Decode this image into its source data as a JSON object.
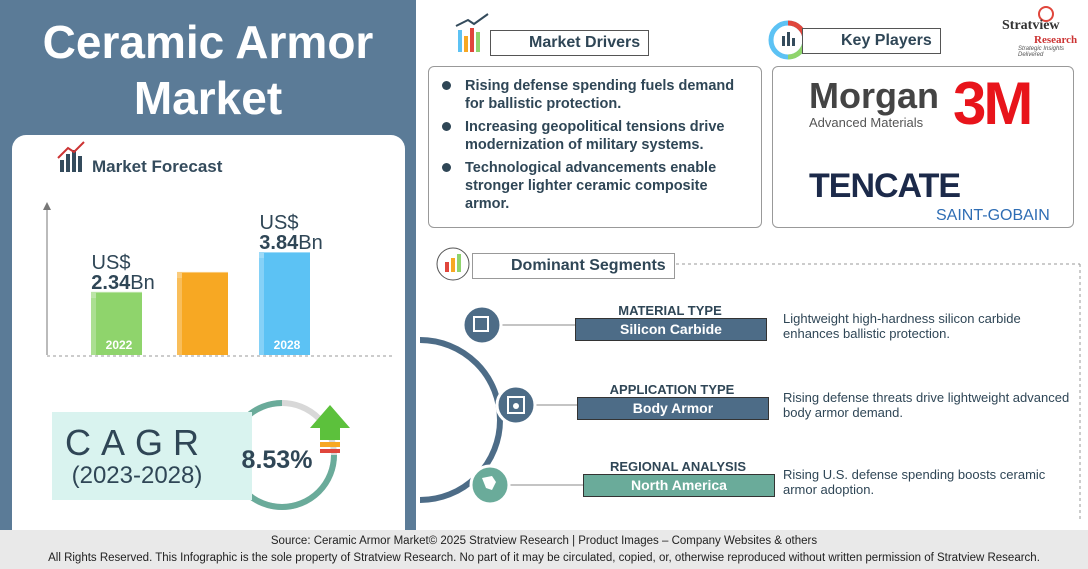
{
  "title": "Ceramic Armor Market",
  "brand": {
    "name": "Stratview",
    "sub": "Research",
    "tagline": "Strategic Insights Delivered"
  },
  "chart_data": {
    "type": "bar",
    "title": "Market Forecast",
    "categories": [
      "2022",
      null,
      "2028"
    ],
    "values": [
      2.34,
      3.09,
      3.84
    ],
    "colors": [
      "#8fd46c",
      "#f7a823",
      "#5cc2f4"
    ],
    "unit_prefix": "US$",
    "unit_suffix": "Bn"
  },
  "cagr": {
    "label": "CAGR",
    "period": "(2023-2028)",
    "value": "8.53%"
  },
  "drivers": {
    "heading": "Market Drivers",
    "items": [
      "Rising defense spending fuels demand for ballistic protection.",
      "Increasing geopolitical tensions drive modernization of military systems.",
      "Technological advancements enable stronger lighter ceramic composite armor."
    ]
  },
  "players": {
    "heading": "Key Players",
    "items": [
      {
        "name": "Morgan",
        "sub": "Advanced Materials"
      },
      {
        "name": "3M"
      },
      {
        "name": "TENCATE"
      },
      {
        "name": "SAINT-GOBAIN"
      }
    ]
  },
  "segments": {
    "heading": "Dominant Segments",
    "items": [
      {
        "type": "MATERIAL TYPE",
        "value": "Silicon Carbide",
        "text": "Lightweight high-hardness silicon carbide enhances ballistic protection."
      },
      {
        "type": "APPLICATION TYPE",
        "value": "Body Armor",
        "text": "Rising defense threats drive lightweight advanced body armor demand."
      },
      {
        "type": "REGIONAL ANALYSIS",
        "value": "North America",
        "text": "Rising U.S. defense spending boosts ceramic armor adoption."
      }
    ]
  },
  "footer": {
    "source": "Source:  Ceramic Armor Market© 2025 Stratview Research | Product Images  – Company Websites & others",
    "rights": "All Rights Reserved. This Infographic is the sole property of Stratview Research. No part of it may be circulated, copied, or, otherwise reproduced without written permission of Stratview Research."
  }
}
